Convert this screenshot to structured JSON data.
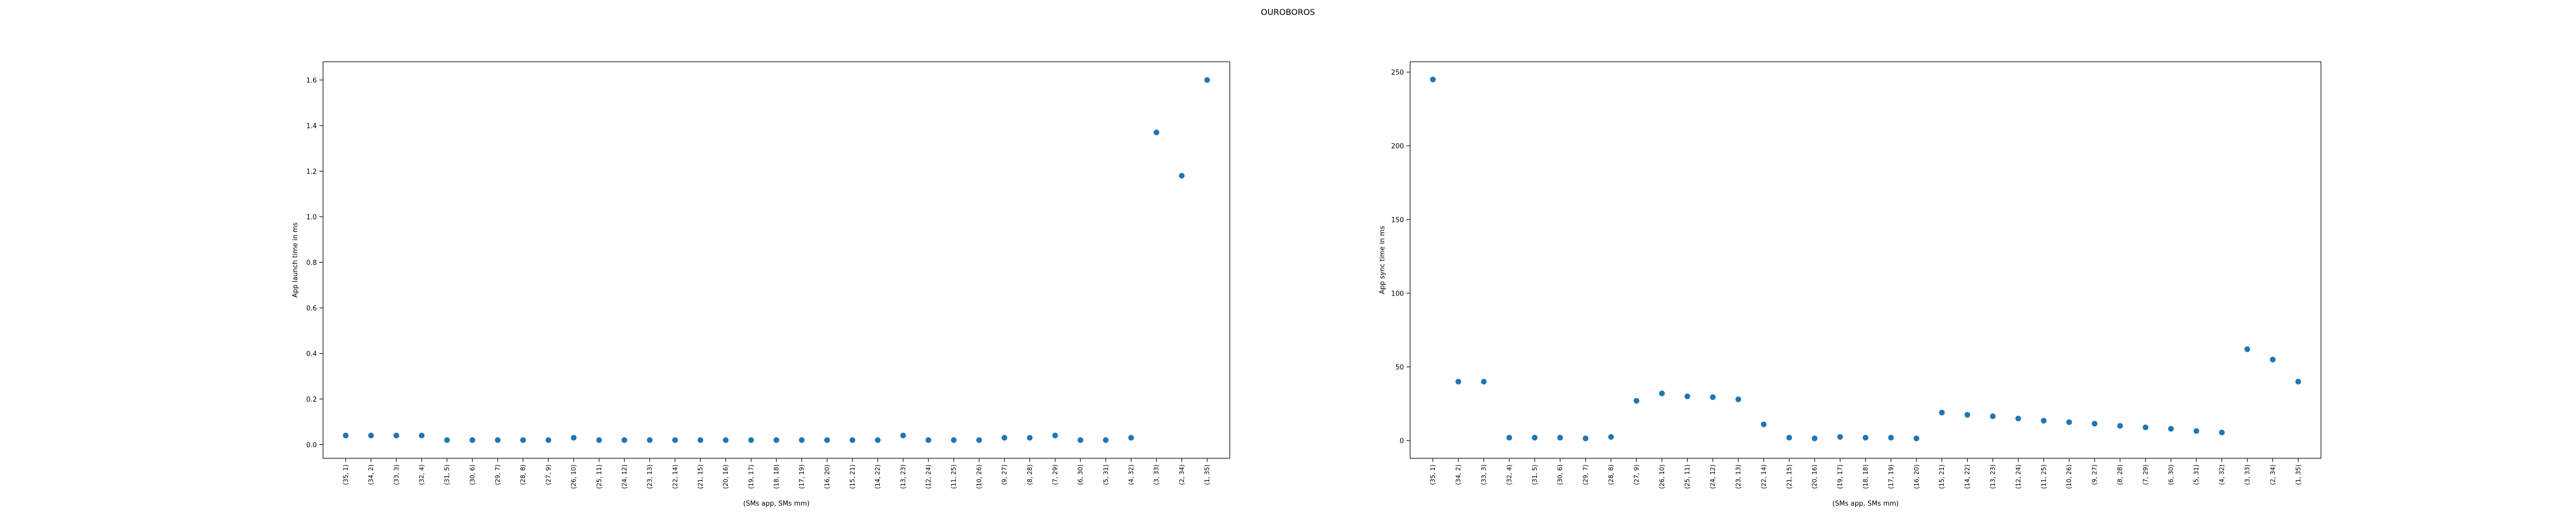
{
  "figure": {
    "suptitle": "OUROBOROS"
  },
  "chart_data": [
    {
      "type": "scatter",
      "title": "",
      "xlabel": "(SMs app, SMs mm)",
      "ylabel": "App launch time in ms",
      "color": "#1f77b4",
      "categories": [
        "(35, 1)",
        "(34, 2)",
        "(33, 3)",
        "(32, 4)",
        "(31, 5)",
        "(30, 6)",
        "(29, 7)",
        "(28, 8)",
        "(27, 9)",
        "(26, 10)",
        "(25, 11)",
        "(24, 12)",
        "(23, 13)",
        "(22, 14)",
        "(21, 15)",
        "(20, 16)",
        "(19, 17)",
        "(18, 18)",
        "(17, 19)",
        "(16, 20)",
        "(15, 21)",
        "(14, 22)",
        "(13, 23)",
        "(12, 24)",
        "(11, 25)",
        "(10, 26)",
        "(9, 27)",
        "(8, 28)",
        "(7, 29)",
        "(6, 30)",
        "(5, 31)",
        "(4, 32)",
        "(3, 33)",
        "(2, 34)",
        "(1, 35)"
      ],
      "values": [
        0.04,
        0.04,
        0.04,
        0.04,
        0.02,
        0.02,
        0.02,
        0.02,
        0.02,
        0.03,
        0.02,
        0.02,
        0.02,
        0.02,
        0.02,
        0.02,
        0.02,
        0.02,
        0.02,
        0.02,
        0.02,
        0.02,
        0.04,
        0.02,
        0.02,
        0.02,
        0.03,
        0.03,
        0.04,
        0.02,
        0.02,
        0.03,
        1.37,
        1.18,
        1.6
      ],
      "yticks": [
        0.0,
        0.2,
        0.4,
        0.6,
        0.8,
        1.0,
        1.2,
        1.4,
        1.6
      ],
      "ytick_labels": [
        "0.0",
        "0.2",
        "0.4",
        "0.6",
        "0.8",
        "1.0",
        "1.2",
        "1.4",
        "1.6"
      ],
      "ylim": [
        -0.06,
        1.68
      ],
      "grid": false,
      "legend": "none"
    },
    {
      "type": "scatter",
      "title": "",
      "xlabel": "(SMs app, SMs mm)",
      "ylabel": "App sync time in ms",
      "color": "#1f77b4",
      "categories": [
        "(35, 1)",
        "(34, 2)",
        "(33, 3)",
        "(32, 4)",
        "(31, 5)",
        "(30, 6)",
        "(29, 7)",
        "(28, 8)",
        "(27, 9)",
        "(26, 10)",
        "(25, 11)",
        "(24, 12)",
        "(23, 13)",
        "(22, 14)",
        "(21, 15)",
        "(20, 16)",
        "(19, 17)",
        "(18, 18)",
        "(17, 19)",
        "(16, 20)",
        "(15, 21)",
        "(14, 22)",
        "(13, 23)",
        "(12, 24)",
        "(11, 25)",
        "(10, 26)",
        "(9, 27)",
        "(8, 28)",
        "(7, 29)",
        "(6, 30)",
        "(5, 31)",
        "(4, 32)",
        "(3, 33)",
        "(2, 34)",
        "(1, 35)"
      ],
      "values": [
        245,
        40,
        40,
        2,
        2,
        2,
        1.5,
        2.5,
        27,
        32,
        30,
        29.5,
        28,
        11,
        2,
        1.5,
        2.5,
        2,
        2,
        1.5,
        19,
        17.5,
        16.5,
        15,
        13.5,
        12.5,
        11.5,
        10,
        9,
        8,
        6.5,
        5.5,
        62,
        55,
        40
      ],
      "yticks": [
        0,
        50,
        100,
        150,
        200,
        250
      ],
      "ytick_labels": [
        "0",
        "50",
        "100",
        "150",
        "200",
        "250"
      ],
      "ylim": [
        -12,
        257
      ],
      "grid": false,
      "legend": "none"
    }
  ]
}
